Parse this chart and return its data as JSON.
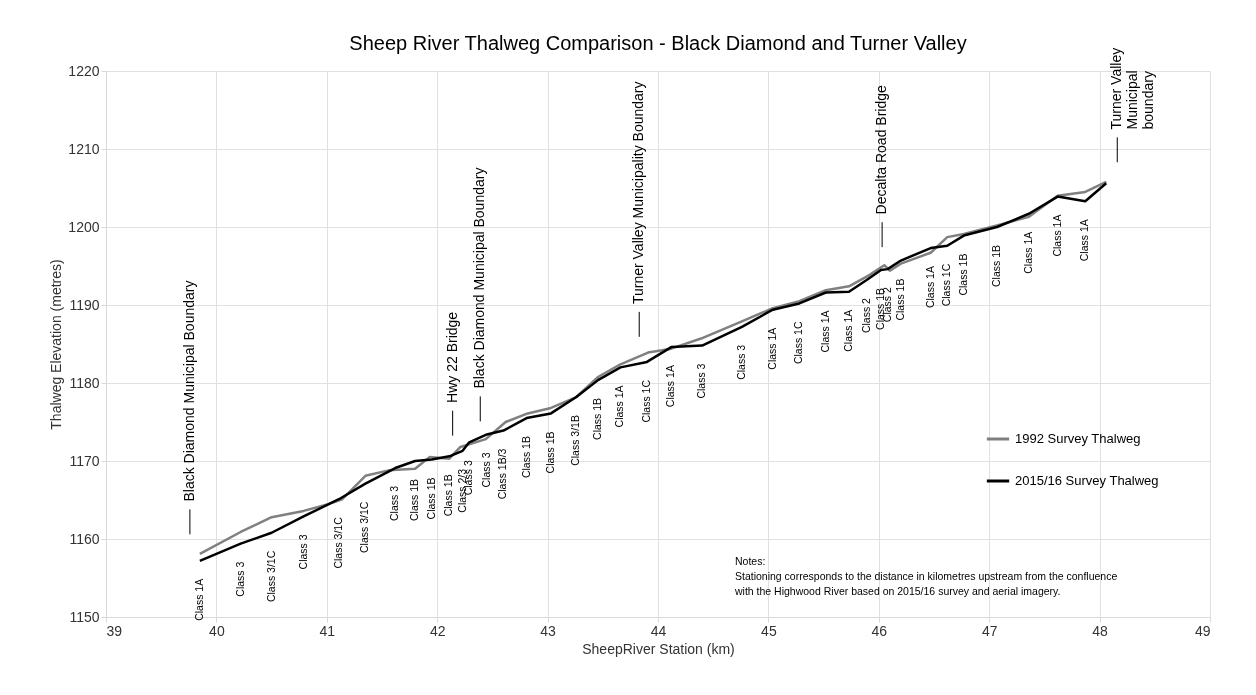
{
  "chart_data": {
    "type": "line",
    "title": "Sheep River Thalweg Comparison - Black Diamond and Turner Valley",
    "xlabel": "SheepRiver Station (km)",
    "ylabel": "Thalweg Elevation (metres)",
    "xlim": [
      39,
      49
    ],
    "xticks": [
      39,
      40,
      41,
      42,
      43,
      44,
      45,
      46,
      47,
      48,
      49
    ],
    "ylim": [
      1150,
      1220
    ],
    "yticks": [
      1150,
      1160,
      1170,
      1180,
      1190,
      1200,
      1210,
      1220
    ],
    "grid": true,
    "legend": "right",
    "line_style": "solid",
    "marker": "none",
    "series": [
      {
        "name": "1992 Survey Thalweg",
        "color": "#808080",
        "x": [
          39.85,
          40.22,
          40.5,
          40.79,
          41.02,
          41.14,
          41.35,
          41.56,
          41.8,
          41.93,
          42.11,
          42.21,
          42.44,
          42.62,
          42.82,
          43.03,
          43.26,
          43.46,
          43.66,
          43.91,
          44.12,
          44.39,
          44.76,
          45.04,
          45.28,
          45.52,
          45.73,
          45.91,
          46.05,
          46.1,
          46.2,
          46.47,
          46.62,
          46.77,
          47.07,
          47.36,
          47.62,
          47.87,
          48.06
        ],
        "values": [
          1158.1,
          1160.9,
          1162.8,
          1163.6,
          1164.5,
          1165.1,
          1168.1,
          1168.8,
          1169.0,
          1170.5,
          1170.3,
          1171.8,
          1172.8,
          1175.0,
          1176.1,
          1176.8,
          1178.2,
          1180.8,
          1182.4,
          1183.9,
          1184.4,
          1185.7,
          1187.9,
          1189.6,
          1190.5,
          1191.9,
          1192.4,
          1193.8,
          1195.1,
          1194.4,
          1195.3,
          1196.7,
          1198.7,
          1199.1,
          1200.2,
          1201.3,
          1204.0,
          1204.5,
          1205.8
        ]
      },
      {
        "name": "2015/16 Survey Thalweg",
        "color": "#000000",
        "x": [
          39.85,
          40.22,
          40.5,
          40.79,
          41.11,
          41.35,
          41.62,
          41.8,
          41.95,
          42.11,
          42.23,
          42.29,
          42.45,
          42.6,
          42.81,
          43.03,
          43.26,
          43.46,
          43.66,
          43.9,
          44.12,
          44.4,
          44.76,
          45.04,
          45.28,
          45.52,
          45.73,
          45.89,
          46.02,
          46.08,
          46.2,
          46.47,
          46.62,
          46.77,
          47.07,
          47.36,
          47.62,
          47.87,
          48.06
        ],
        "values": [
          1157.2,
          1159.4,
          1160.8,
          1162.9,
          1165.1,
          1167.1,
          1169.1,
          1170.0,
          1170.2,
          1170.6,
          1171.3,
          1172.4,
          1173.4,
          1173.9,
          1175.5,
          1176.1,
          1178.2,
          1180.4,
          1182.0,
          1182.7,
          1184.6,
          1184.8,
          1187.2,
          1189.4,
          1190.2,
          1191.6,
          1191.7,
          1193.2,
          1194.5,
          1194.6,
          1195.7,
          1197.3,
          1197.6,
          1198.9,
          1200.0,
          1201.7,
          1203.9,
          1203.3,
          1205.6
        ]
      }
    ],
    "ref_lines": [
      {
        "axis": "x",
        "value": 39.76,
        "label": "Black Diamond Municipal Boundary"
      },
      {
        "axis": "x",
        "value": 42.14,
        "label": "Hwy 22 Bridge"
      },
      {
        "axis": "x",
        "value": 42.39,
        "label": "Black Diamond Municipal Boundary"
      },
      {
        "axis": "x",
        "value": 43.83,
        "label": "Turner Valley Municipality Boundary"
      },
      {
        "axis": "x",
        "value": 46.03,
        "label": "Decalta Road Bridge"
      },
      {
        "axis": "x",
        "value": 48.16,
        "label": "Turner Valley\nMunicipal\nboundary"
      }
    ],
    "annotations": [
      {
        "text": "Class 1A",
        "x": 39.85,
        "y": 1157.2
      },
      {
        "text": "Class 3",
        "x": 40.22,
        "y": 1159.4
      },
      {
        "text": "Class 3/1C",
        "x": 40.5,
        "y": 1160.8
      },
      {
        "text": "Class 3",
        "x": 40.79,
        "y": 1162.9
      },
      {
        "text": "Class 3/1C",
        "x": 41.11,
        "y": 1165.1
      },
      {
        "text": "Class 3/1C",
        "x": 41.35,
        "y": 1167.1
      },
      {
        "text": "Class 3",
        "x": 41.62,
        "y": 1169.1
      },
      {
        "text": "Class 1B",
        "x": 41.8,
        "y": 1170.0
      },
      {
        "text": "Class 1B",
        "x": 41.95,
        "y": 1170.2
      },
      {
        "text": "Class 1B",
        "x": 42.11,
        "y": 1170.6
      },
      {
        "text": "Class 2/3",
        "x": 42.23,
        "y": 1171.3
      },
      {
        "text": "Class 3",
        "x": 42.29,
        "y": 1172.4
      },
      {
        "text": "Class 3",
        "x": 42.45,
        "y": 1173.4
      },
      {
        "text": "Class 1B/3",
        "x": 42.6,
        "y": 1173.9
      },
      {
        "text": "Class 1B",
        "x": 42.81,
        "y": 1175.5
      },
      {
        "text": "Class 1B",
        "x": 43.03,
        "y": 1176.1
      },
      {
        "text": "Class 3/1B",
        "x": 43.26,
        "y": 1178.2
      },
      {
        "text": "Class 1B",
        "x": 43.46,
        "y": 1180.4
      },
      {
        "text": "Class 1A",
        "x": 43.66,
        "y": 1182.0
      },
      {
        "text": "Class 1C",
        "x": 43.9,
        "y": 1182.7
      },
      {
        "text": "Class 1A",
        "x": 44.12,
        "y": 1184.6
      },
      {
        "text": "Class 3",
        "x": 44.4,
        "y": 1184.8
      },
      {
        "text": "Class 3",
        "x": 44.76,
        "y": 1187.2
      },
      {
        "text": "Class 1A",
        "x": 45.04,
        "y": 1189.4
      },
      {
        "text": "Class 1C",
        "x": 45.28,
        "y": 1190.2
      },
      {
        "text": "Class 1A",
        "x": 45.52,
        "y": 1191.6
      },
      {
        "text": "Class 1A",
        "x": 45.73,
        "y": 1191.7
      },
      {
        "text": "Class 2",
        "x": 45.89,
        "y": 1193.2
      },
      {
        "text": "Class 1B",
        "x": 46.02,
        "y": 1194.5
      },
      {
        "text": "Class 2",
        "x": 46.08,
        "y": 1194.6
      },
      {
        "text": "Class 1B",
        "x": 46.2,
        "y": 1195.7
      },
      {
        "text": "Class 1A",
        "x": 46.47,
        "y": 1197.3
      },
      {
        "text": "Class 1C",
        "x": 46.62,
        "y": 1197.6
      },
      {
        "text": "Class 1B",
        "x": 46.77,
        "y": 1198.9
      },
      {
        "text": "Class 1B",
        "x": 47.07,
        "y": 1200.0
      },
      {
        "text": "Class 1A",
        "x": 47.36,
        "y": 1201.7
      },
      {
        "text": "Class 1A",
        "x": 47.62,
        "y": 1203.9
      },
      {
        "text": "Class 1A",
        "x": 47.87,
        "y": 1203.3
      },
      "Notes:\nStationing corresponds to the distance in kilometres  upstream from the  confluence\nwith the Highwood River  based on 2015/16 survey and aerial imagery."
    ]
  }
}
